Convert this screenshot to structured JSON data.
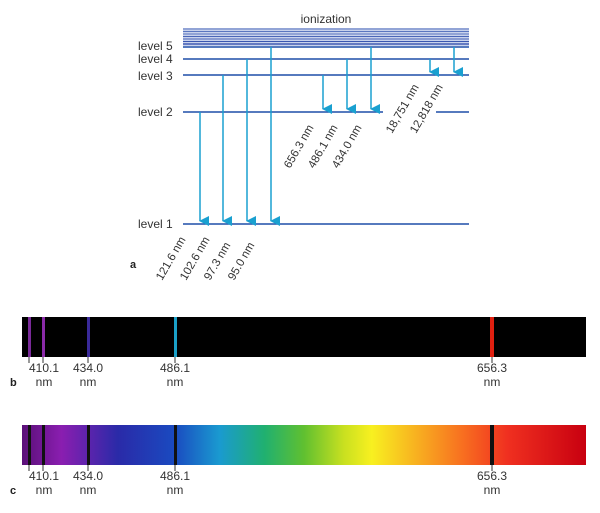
{
  "panel_a": {
    "label": "a",
    "ionization_label": "ionization",
    "levels": [
      {
        "id": "level-5",
        "label": "level 5"
      },
      {
        "id": "level-4",
        "label": "level 4"
      },
      {
        "id": "level-3",
        "label": "level 3"
      },
      {
        "id": "level-2",
        "label": "level 2"
      },
      {
        "id": "level-1",
        "label": "level 1"
      }
    ],
    "lyman_labels": [
      "121.6 nm",
      "102.6 nm",
      "97.3 nm",
      "95.0 nm"
    ],
    "balmer_labels": [
      "656.3 nm",
      "486.1 nm",
      "434.0 nm"
    ],
    "paschen_labels": [
      "18,751 nm",
      "12,818 nm"
    ]
  },
  "panel_b": {
    "label": "b",
    "type": "emission spectrum",
    "lines": [
      {
        "wavelength": "410.1",
        "unit": "nm",
        "color": "#7a2a9a"
      },
      {
        "wavelength": "434.0",
        "unit": "nm",
        "color": "#3a2a9a"
      },
      {
        "wavelength": "486.1",
        "unit": "nm",
        "color": "#1aa0c8"
      },
      {
        "wavelength": "656.3",
        "unit": "nm",
        "color": "#e02010"
      }
    ]
  },
  "panel_c": {
    "label": "c",
    "type": "absorption spectrum",
    "lines": [
      {
        "wavelength": "410.1",
        "unit": "nm"
      },
      {
        "wavelength": "434.0",
        "unit": "nm"
      },
      {
        "wavelength": "486.1",
        "unit": "nm"
      },
      {
        "wavelength": "656.3",
        "unit": "nm"
      }
    ]
  },
  "colors": {
    "level_line": "#1f4fa8",
    "arrow": "#1aa0d0",
    "emission_background": "#000000"
  }
}
